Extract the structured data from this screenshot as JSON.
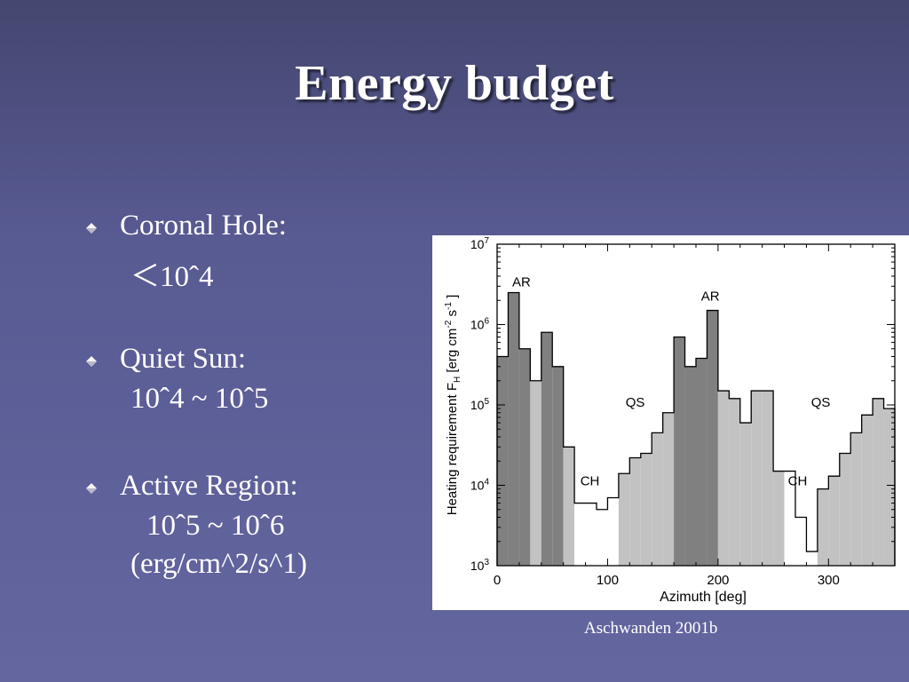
{
  "slide": {
    "title": "Energy budget",
    "caption": "Aschwanden 2001b"
  },
  "bullets": [
    {
      "label": "Coronal Hole:",
      "lines": [
        "＜10ˆ4"
      ]
    },
    {
      "label": "Quiet Sun:",
      "lines": [
        "10ˆ4 ~ 10ˆ5"
      ]
    },
    {
      "label": "Active Region:",
      "lines": [
        "10ˆ5 ~ 10ˆ6",
        "(erg/cm^2/s^1)"
      ]
    }
  ],
  "chart_data": {
    "type": "bar",
    "subtype": "histogram-step",
    "xlabel": "Azimuth  [deg]",
    "ylabel": "Heating requirement F_H [erg cm^-2 s^-1]",
    "xlim": [
      0,
      360
    ],
    "ylim": [
      1000,
      10000000
    ],
    "yscale": "log",
    "xticks": [
      0,
      100,
      200,
      300
    ],
    "yticks": [
      1000,
      10000,
      100000,
      1000000,
      10000000
    ],
    "ytick_labels": [
      "10^3",
      "10^4",
      "10^5",
      "10^6",
      "10^7"
    ],
    "bin_width": 10,
    "x": [
      0,
      10,
      20,
      30,
      40,
      50,
      60,
      70,
      80,
      90,
      100,
      110,
      120,
      130,
      140,
      150,
      160,
      170,
      180,
      190,
      200,
      210,
      220,
      230,
      240,
      250,
      260,
      270,
      280,
      290,
      300,
      310,
      320,
      330,
      340,
      350
    ],
    "values": [
      400000,
      2500000,
      500000,
      200000,
      800000,
      300000,
      30000,
      6000,
      6000,
      5000,
      7000,
      14000,
      22000,
      25000,
      45000,
      80000,
      700000,
      300000,
      380000,
      1500000,
      150000,
      120000,
      60000,
      150000,
      150000,
      15000,
      15000,
      4000,
      1500,
      9000,
      13000,
      25000,
      45000,
      75000,
      120000,
      90000
    ],
    "region_codes": [
      "AR",
      "AR",
      "AR",
      "QS",
      "AR",
      "AR",
      "QS",
      "CH",
      "CH",
      "CH",
      "CH",
      "QS",
      "QS",
      "QS",
      "QS",
      "QS",
      "AR",
      "AR",
      "AR",
      "AR",
      "QS",
      "QS",
      "QS",
      "QS",
      "QS",
      "QS",
      "CH",
      "CH",
      "CH",
      "QS",
      "QS",
      "QS",
      "QS",
      "QS",
      "QS",
      "QS"
    ],
    "fill_colors": {
      "AR": "#808080",
      "QS": "#c2c2c2",
      "CH": "#ffffff"
    },
    "annotations": [
      {
        "text": "AR",
        "x": 22,
        "y": 3000000
      },
      {
        "text": "AR",
        "x": 193,
        "y": 2000000
      },
      {
        "text": "QS",
        "x": 125,
        "y": 95000
      },
      {
        "text": "QS",
        "x": 293,
        "y": 95000
      },
      {
        "text": "CH",
        "x": 84,
        "y": 10000
      },
      {
        "text": "CH",
        "x": 272,
        "y": 10000
      }
    ],
    "grid": false
  }
}
